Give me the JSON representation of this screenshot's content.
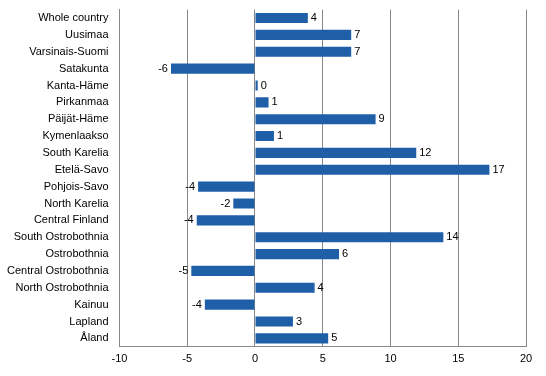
{
  "chart_data": {
    "type": "bar",
    "orientation": "horizontal",
    "categories": [
      "Whole country",
      "Uusimaa",
      "Varsinais-Suomi",
      "Satakunta",
      "Kanta-Häme",
      "Pirkanmaa",
      "Päijät-Häme",
      "Kymenlaakso",
      "South Karelia",
      "Etelä-Savo",
      "Pohjois-Savo",
      "North Karelia",
      "Central Finland",
      "South Ostrobothnia",
      "Ostrobothnia",
      "Central Ostrobothnia",
      "North Ostrobothnia",
      "Kainuu",
      "Lapland",
      "Åland"
    ],
    "values": [
      3.9,
      7.1,
      7.1,
      -6.2,
      0.2,
      1.0,
      8.9,
      1.4,
      11.9,
      17.3,
      -4.2,
      -1.6,
      -4.3,
      13.9,
      6.2,
      -4.7,
      4.4,
      -3.7,
      2.8,
      5.4
    ],
    "value_labels": [
      "4",
      "7",
      "7",
      "-6",
      "0",
      "1",
      "9",
      "1",
      "12",
      "17",
      "-4",
      "-2",
      "-4",
      "14",
      "6",
      "-5",
      "4",
      "-4",
      "3",
      "5"
    ],
    "data_labels": true,
    "color": "#1f5fa8",
    "xlim": [
      -10,
      20
    ],
    "xticks": [
      -10,
      -5,
      0,
      5,
      10,
      15,
      20
    ],
    "grid": true
  }
}
